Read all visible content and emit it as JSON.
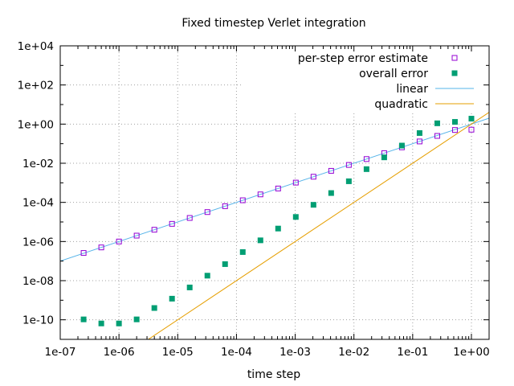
{
  "chart_data": {
    "type": "scatter",
    "title": "Fixed timestep Verlet integration",
    "xlabel": "time step",
    "ylabel": "",
    "xscale": "log",
    "yscale": "log",
    "xlim": [
      1e-07,
      2
    ],
    "ylim": [
      1e-11,
      10000.0
    ],
    "grid": true,
    "legend_position": "top-right",
    "x_tick_labels": [
      "1e-07",
      "1e-06",
      "1e-05",
      "1e-04",
      "1e-03",
      "1e-02",
      "1e-01",
      "1e+00"
    ],
    "x_tick_values": [
      1e-07,
      1e-06,
      1e-05,
      0.0001,
      0.001,
      0.01,
      0.1,
      1
    ],
    "y_tick_labels": [
      "1e-10",
      "1e-08",
      "1e-06",
      "1e-04",
      "1e-02",
      "1e+00",
      "1e+02",
      "1e+04"
    ],
    "y_tick_values": [
      1e-10,
      1e-08,
      1e-06,
      0.0001,
      0.01,
      1,
      100,
      10000
    ],
    "series": [
      {
        "name": "per-step error estimate",
        "kind": "points",
        "marker": "open-square",
        "color": "#9400d3",
        "x": [
          2.5e-07,
          5e-07,
          1e-06,
          2e-06,
          4e-06,
          8e-06,
          1.6e-05,
          3.2e-05,
          6.4e-05,
          0.000128,
          0.000256,
          0.000512,
          0.001024,
          0.002048,
          0.004096,
          0.008192,
          0.016384,
          0.032768,
          0.065536,
          0.131072,
          0.262144,
          0.524288,
          1.0
        ],
        "y": [
          2.6e-07,
          5e-07,
          1e-06,
          2e-06,
          4e-06,
          8e-06,
          1.6e-05,
          3.2e-05,
          6.4e-05,
          0.000128,
          0.000256,
          0.000512,
          0.001024,
          0.002048,
          0.004096,
          0.008192,
          0.016384,
          0.032768,
          0.065,
          0.13,
          0.25,
          0.5,
          0.52
        ]
      },
      {
        "name": "overall error",
        "kind": "points",
        "marker": "filled-square",
        "color": "#009e73",
        "x": [
          2.5e-07,
          5e-07,
          1e-06,
          2e-06,
          4e-06,
          8e-06,
          1.6e-05,
          3.2e-05,
          6.4e-05,
          0.000128,
          0.000256,
          0.000512,
          0.001024,
          0.002048,
          0.004096,
          0.008192,
          0.016384,
          0.032768,
          0.065536,
          0.131072,
          0.262144,
          0.524288,
          1.0
        ],
        "y": [
          1.05e-10,
          6.5e-11,
          6.5e-11,
          1.05e-10,
          4e-10,
          1.2e-09,
          4.5e-09,
          1.8e-08,
          7e-08,
          2.9e-07,
          1.15e-06,
          4.6e-06,
          1.8e-05,
          7.5e-05,
          0.0003,
          0.0012,
          0.005,
          0.02,
          0.08,
          0.35,
          1.1,
          1.3,
          1.9
        ]
      },
      {
        "name": "linear",
        "kind": "line",
        "color": "#56b4e9",
        "x": [
          1e-07,
          2
        ],
        "y": [
          1e-07,
          2
        ]
      },
      {
        "name": "quadratic",
        "kind": "line",
        "color": "#e69f00",
        "x": [
          1e-07,
          2
        ],
        "y": [
          1e-14,
          4
        ]
      }
    ]
  }
}
